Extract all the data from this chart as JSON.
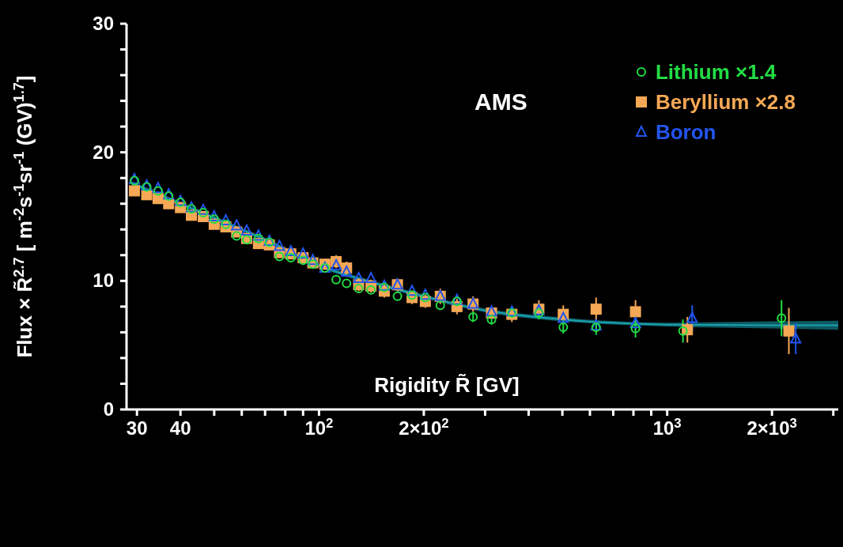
{
  "chart_data": {
    "type": "scatter",
    "xlabel": "Rigidity  R̃ [GV]",
    "ylabel": "Flux × R̃$^{2.7}$ [ m$^{-2}$s$^{-1}$sr$^{-1}$ (GV)$^{1.7}$]",
    "annotations": [
      "AMS"
    ],
    "log": "x",
    "legend": "top right",
    "xlim": [
      28,
      3100
    ],
    "ylim": [
      0,
      30
    ],
    "xticks": [
      30,
      40,
      {
        "value": 50,
        "label": null
      },
      {
        "value": 60,
        "label": null
      },
      {
        "value": 70,
        "label": null
      },
      {
        "value": 80,
        "label": null
      },
      {
        "value": 90,
        "label": null
      },
      {
        "value": 100,
        "label": "10$^{2}$"
      },
      {
        "value": 200,
        "label": "2×10$^{2}$"
      },
      {
        "value": 300,
        "label": null
      },
      {
        "value": 400,
        "label": null
      },
      {
        "value": 500,
        "label": null
      },
      {
        "value": 600,
        "label": null
      },
      {
        "value": 700,
        "label": null
      },
      {
        "value": 800,
        "label": null
      },
      {
        "value": 900,
        "label": null
      },
      {
        "value": 1000,
        "label": "10$^{3}$"
      },
      {
        "value": 2000,
        "label": "2×10$^{3}$"
      },
      {
        "value": 3000,
        "label": null
      }
    ],
    "yticks": [
      0,
      {
        "value": 2,
        "label": null
      },
      {
        "value": 4,
        "label": null
      },
      {
        "value": 6,
        "label": null
      },
      {
        "value": 8,
        "label": null
      },
      10,
      {
        "value": 12,
        "label": null
      },
      {
        "value": 14,
        "label": null
      },
      {
        "value": 16,
        "label": null
      },
      {
        "value": 18,
        "label": null
      },
      20,
      {
        "value": 22,
        "label": null
      },
      {
        "value": 24,
        "label": null
      },
      {
        "value": 26,
        "label": null
      },
      {
        "value": 28,
        "label": null
      },
      30
    ],
    "x": [
      29.5,
      32,
      34.5,
      37,
      40,
      43,
      46.5,
      50,
      54,
      58,
      62,
      67,
      72,
      77,
      83,
      90,
      96,
      104,
      112,
      120,
      130,
      141,
      154,
      168,
      185,
      202,
      223,
      249,
      277,
      313,
      358,
      428,
      503,
      625,
      811,
      1143,
      2236
    ],
    "series": [
      {
        "name": "Lithium ×1.4",
        "color": "#22dd44",
        "marker": "circle",
        "x": [
          29.5,
          32,
          34.5,
          37,
          40,
          43,
          46.5,
          50,
          54,
          58,
          62,
          67,
          72,
          77,
          83,
          90,
          96,
          104,
          112,
          120,
          130,
          141,
          154,
          168,
          185,
          202,
          223,
          249,
          277,
          313,
          358,
          428,
          503,
          625,
          811,
          1110,
          2130
        ],
        "values": [
          17.8,
          17.3,
          17.0,
          16.6,
          16.1,
          15.6,
          15.3,
          14.8,
          14.4,
          13.5,
          13.2,
          13.3,
          13.0,
          11.9,
          11.8,
          11.6,
          11.3,
          11.0,
          10.1,
          9.8,
          9.4,
          9.3,
          9.5,
          8.8,
          8.9,
          8.7,
          8.1,
          8.4,
          7.2,
          7.0,
          7.5,
          7.5,
          6.4,
          6.4,
          6.3,
          6.1,
          7.1
        ],
        "errors": [
          null,
          null,
          null,
          null,
          null,
          null,
          null,
          null,
          null,
          null,
          null,
          null,
          null,
          null,
          null,
          null,
          null,
          null,
          null,
          null,
          null,
          null,
          null,
          null,
          null,
          null,
          null,
          null,
          0.4,
          0.4,
          null,
          0.5,
          0.5,
          0.6,
          0.7,
          0.9,
          1.4
        ]
      },
      {
        "name": "Beryllium ×2.8",
        "color": "#f5a855",
        "marker": "square",
        "values": [
          17.0,
          16.7,
          16.4,
          16.0,
          15.7,
          15.1,
          15.0,
          14.4,
          14.2,
          13.8,
          13.3,
          12.9,
          12.8,
          12.2,
          12.1,
          11.8,
          11.4,
          11.3,
          11.5,
          11.0,
          9.7,
          9.6,
          9.2,
          9.7,
          8.7,
          8.4,
          8.8,
          8.0,
          8.2,
          7.5,
          7.4,
          7.8,
          7.4,
          7.8,
          7.6,
          6.2,
          6.1
        ],
        "errors": [
          0.4,
          0.4,
          0.4,
          0.4,
          0.4,
          0.4,
          0.4,
          0.4,
          0.4,
          0.4,
          0.4,
          0.4,
          0.4,
          0.4,
          0.4,
          0.4,
          0.4,
          0.4,
          0.5,
          0.5,
          0.5,
          0.5,
          0.5,
          0.5,
          0.5,
          0.5,
          0.6,
          0.6,
          0.6,
          null,
          0.6,
          0.7,
          0.7,
          0.9,
          0.9,
          1.0,
          1.8
        ]
      },
      {
        "name": "Boron",
        "color": "#2255ee",
        "marker": "triangle",
        "x": [
          29.5,
          32,
          34.5,
          37,
          40,
          43,
          46.5,
          50,
          54,
          58,
          62,
          67,
          72,
          77,
          83,
          90,
          96,
          104,
          112,
          120,
          130,
          141,
          154,
          168,
          185,
          202,
          223,
          249,
          277,
          313,
          358,
          428,
          503,
          625,
          811,
          1180,
          2340
        ],
        "values": [
          17.9,
          17.4,
          17.2,
          16.7,
          16.2,
          15.7,
          15.5,
          15.0,
          14.7,
          14.3,
          13.9,
          13.5,
          13.1,
          12.7,
          12.3,
          12.1,
          11.6,
          11.0,
          11.2,
          10.7,
          10.2,
          10.2,
          9.6,
          9.7,
          9.2,
          8.9,
          8.8,
          8.5,
          8.2,
          7.6,
          7.6,
          7.7,
          7.1,
          6.5,
          6.7,
          7.1,
          5.5
        ],
        "errors": [
          null,
          null,
          null,
          null,
          null,
          null,
          null,
          null,
          null,
          null,
          null,
          null,
          null,
          null,
          null,
          null,
          null,
          null,
          null,
          null,
          null,
          null,
          null,
          null,
          null,
          null,
          null,
          null,
          null,
          0.3,
          0.3,
          0.4,
          0.4,
          0.5,
          0.6,
          1.0,
          1.2
        ]
      },
      {
        "type": "line",
        "color": "#1aa3b0",
        "x": [
          29,
          40,
          50,
          70,
          100,
          150,
          200,
          300,
          500,
          1000,
          2000,
          3100
        ],
        "values": [
          17.6,
          16.0,
          14.9,
          13.2,
          11.2,
          9.7,
          8.8,
          7.7,
          7.0,
          6.6,
          6.55,
          6.55
        ],
        "lower": [
          17.45,
          15.85,
          14.75,
          13.05,
          11.05,
          9.55,
          8.65,
          7.55,
          6.85,
          6.45,
          6.3,
          6.2
        ],
        "upper": [
          17.75,
          16.15,
          15.05,
          13.35,
          11.35,
          9.85,
          8.95,
          7.85,
          7.15,
          6.75,
          6.85,
          6.9
        ]
      }
    ]
  }
}
